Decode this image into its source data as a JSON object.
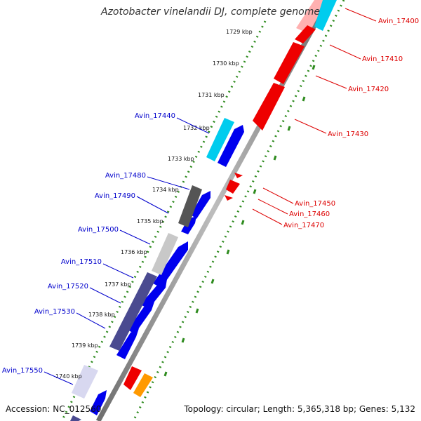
{
  "title": "Azotobacter vinelandii DJ, complete genome",
  "footer": {
    "accession": "Accession: NC_012560",
    "topology": "Topology: circular; Length: 5,365,318 bp; Genes: 5,132"
  },
  "colors": {
    "forward_gene": "#0000ee",
    "reverse_gene": "#ee0000",
    "highlight_cyan": "#00ccee",
    "dark_gray": "#555555",
    "light_gray": "#c8c8c8",
    "slate": "#4a4a90",
    "orange": "#ff9900",
    "ruler_dots": "#2e8b1e",
    "backbone": "#8a8a8a",
    "left_label": "#0000cc",
    "right_label": "#dd0000"
  },
  "ruler_ticks": [
    "1729 kbp",
    "1730 kbp",
    "1731 kbp",
    "1732 kbp",
    "1733 kbp",
    "1734 kbp",
    "1735 kbp",
    "1736 kbp",
    "1737 kbp",
    "1738 kbp",
    "1739 kbp",
    "1740 kbp"
  ],
  "left_labels": [
    "Avin_17440",
    "Avin_17480",
    "Avin_17490",
    "Avin_17500",
    "Avin_17510",
    "Avin_17520",
    "Avin_17530",
    "Avin_17550"
  ],
  "right_labels": [
    "Avin_17400",
    "Avin_17410",
    "Avin_17420",
    "Avin_17430",
    "Avin_17450",
    "Avin_17460",
    "Avin_17470"
  ]
}
